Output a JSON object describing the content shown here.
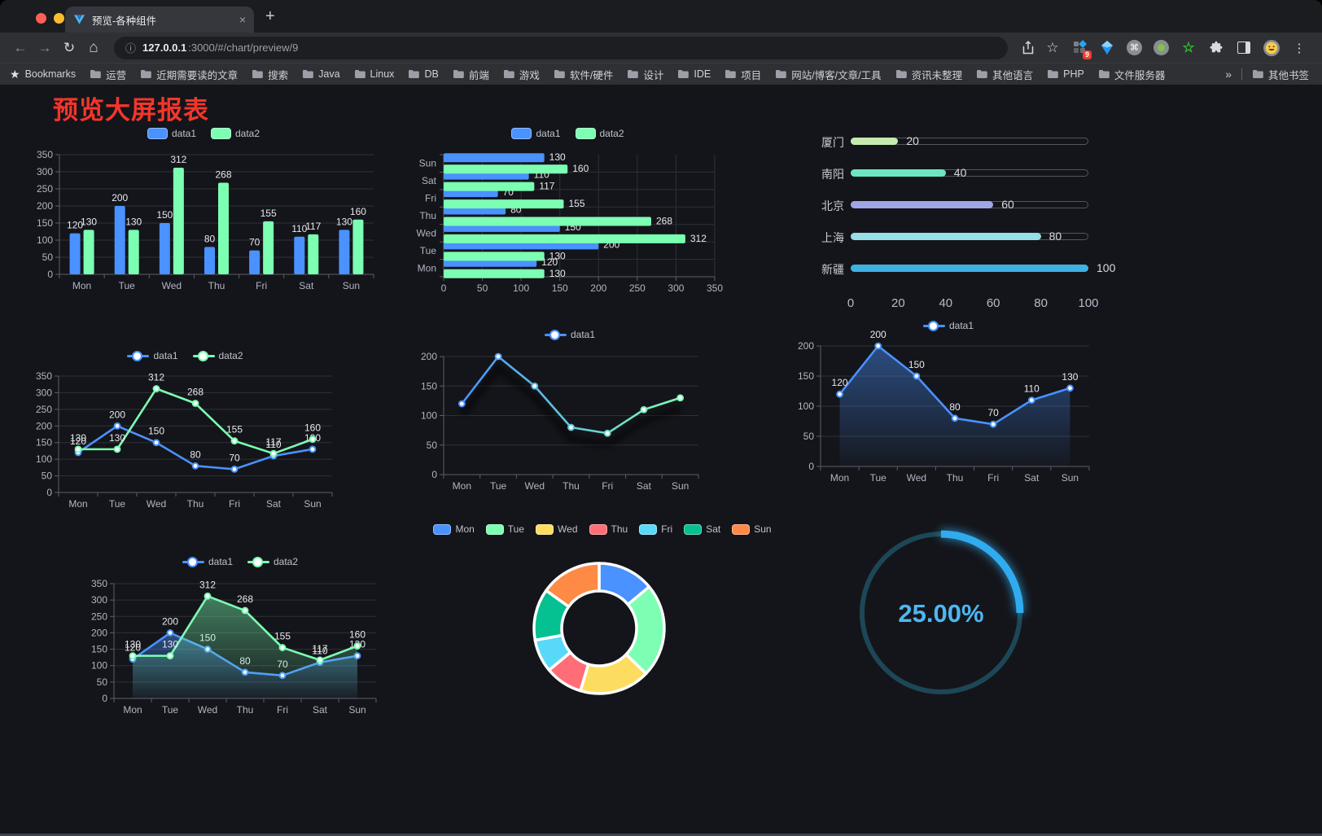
{
  "browser": {
    "tab_title": "预览-各种组件",
    "tab_close": "×",
    "new_tab": "+",
    "url_host": "127.0.0.1",
    "url_path": ":3000/#/chart/preview/9",
    "bookmarks_label": "Bookmarks",
    "bookmark_folders": [
      "运营",
      "近期需要读的文章",
      "搜索",
      "Java",
      "Linux",
      "DB",
      "前端",
      "游戏",
      "软件/硬件",
      "设计",
      "IDE",
      "项目",
      "网站/博客/文章/工具",
      "资讯未整理",
      "其他语言",
      "PHP",
      "文件服务器"
    ],
    "overflow_chevron": "»",
    "other_bookmarks": "其他书签",
    "extension_badge": "9",
    "traffic_lights": [
      "#ff5f57",
      "#febc2e",
      "#28c840"
    ]
  },
  "page": {
    "title": "预览大屏报表"
  },
  "theme": {
    "background": "#14151a",
    "axis_text": "#b3b4c2",
    "grid_line": "#2f3038",
    "axis_line": "#5c5e68",
    "value_label": "#e8e8ec",
    "blue": "#4992ff",
    "green": "#7cffb2"
  },
  "chart_data": [
    {
      "id": "bar-vertical",
      "type": "bar",
      "legend_position": "top",
      "categories": [
        "Mon",
        "Tue",
        "Wed",
        "Thu",
        "Fri",
        "Sat",
        "Sun"
      ],
      "series": [
        {
          "name": "data1",
          "color": "#4992ff",
          "values": [
            120,
            200,
            150,
            80,
            70,
            110,
            130
          ]
        },
        {
          "name": "data2",
          "color": "#7cffb2",
          "values": [
            130,
            130,
            312,
            268,
            155,
            117,
            160
          ]
        }
      ],
      "ylim": [
        0,
        350
      ],
      "ytick_step": 50,
      "show_labels": true
    },
    {
      "id": "bar-horizontal",
      "type": "bar",
      "orientation": "horizontal",
      "legend_position": "top",
      "categories": [
        "Mon",
        "Tue",
        "Wed",
        "Thu",
        "Fri",
        "Sat",
        "Sun"
      ],
      "series": [
        {
          "name": "data1",
          "color": "#4992ff",
          "values": [
            120,
            200,
            150,
            80,
            70,
            110,
            130
          ]
        },
        {
          "name": "data2",
          "color": "#7cffb2",
          "values": [
            130,
            130,
            312,
            268,
            155,
            117,
            160
          ]
        }
      ],
      "xlim": [
        0,
        350
      ],
      "xtick_step": 50,
      "show_labels": true
    },
    {
      "id": "progress",
      "type": "bar",
      "orientation": "horizontal-progress",
      "categories": [
        "厦门",
        "南阳",
        "北京",
        "上海",
        "新疆"
      ],
      "values": [
        20,
        40,
        60,
        80,
        100
      ],
      "colors": [
        "#c4ebad",
        "#6be6c1",
        "#a0a7e6",
        "#96dee8",
        "#3fb1e3"
      ],
      "xlim": [
        0,
        100
      ],
      "xticks": [
        0,
        20,
        40,
        60,
        80,
        100
      ]
    },
    {
      "id": "line-double",
      "type": "line",
      "legend_position": "top",
      "categories": [
        "Mon",
        "Tue",
        "Wed",
        "Thu",
        "Fri",
        "Sat",
        "Sun"
      ],
      "series": [
        {
          "name": "data1",
          "color": "#4992ff",
          "values": [
            120,
            200,
            150,
            80,
            70,
            110,
            130
          ]
        },
        {
          "name": "data2",
          "color": "#7cffb2",
          "values": [
            130,
            130,
            312,
            268,
            155,
            117,
            160
          ]
        }
      ],
      "ylim": [
        0,
        350
      ],
      "ytick_step": 50,
      "show_labels": true
    },
    {
      "id": "line-gradient",
      "type": "line",
      "legend_position": "top",
      "categories": [
        "Mon",
        "Tue",
        "Wed",
        "Thu",
        "Fri",
        "Sat",
        "Sun"
      ],
      "series": [
        {
          "name": "data1",
          "gradient": [
            "#4992ff",
            "#7cffb2"
          ],
          "values": [
            120,
            200,
            150,
            80,
            70,
            110,
            130
          ]
        }
      ],
      "ylim": [
        0,
        200
      ],
      "ytick_step": 50,
      "show_labels": false
    },
    {
      "id": "area-single",
      "type": "area",
      "legend_position": "top",
      "categories": [
        "Mon",
        "Tue",
        "Wed",
        "Thu",
        "Fri",
        "Sat",
        "Sun"
      ],
      "series": [
        {
          "name": "data1",
          "color": "#4992ff",
          "values": [
            120,
            200,
            150,
            80,
            70,
            110,
            130
          ]
        }
      ],
      "ylim": [
        0,
        200
      ],
      "ytick_step": 50,
      "show_labels": true
    },
    {
      "id": "area-double",
      "type": "area",
      "legend_position": "top",
      "categories": [
        "Mon",
        "Tue",
        "Wed",
        "Thu",
        "Fri",
        "Sat",
        "Sun"
      ],
      "series": [
        {
          "name": "data1",
          "color": "#4992ff",
          "values": [
            120,
            200,
            150,
            80,
            70,
            110,
            130
          ]
        },
        {
          "name": "data2",
          "color": "#7cffb2",
          "values": [
            130,
            130,
            312,
            268,
            155,
            117,
            160
          ]
        }
      ],
      "ylim": [
        0,
        350
      ],
      "ytick_step": 50,
      "show_labels": true
    },
    {
      "id": "donut",
      "type": "pie",
      "legend_position": "top",
      "categories": [
        "Mon",
        "Tue",
        "Wed",
        "Thu",
        "Fri",
        "Sat",
        "Sun"
      ],
      "values": [
        120,
        200,
        150,
        80,
        70,
        110,
        130
      ],
      "colors": [
        "#4992ff",
        "#7cffb2",
        "#fddd60",
        "#ff6e76",
        "#58d9f9",
        "#05c091",
        "#ff8a45"
      ],
      "inner_radius_ratio": 0.57
    },
    {
      "id": "gauge",
      "type": "gauge",
      "value": 25,
      "value_label": "25.00%",
      "color": "#30acee",
      "track_color": "#1d4756"
    }
  ]
}
